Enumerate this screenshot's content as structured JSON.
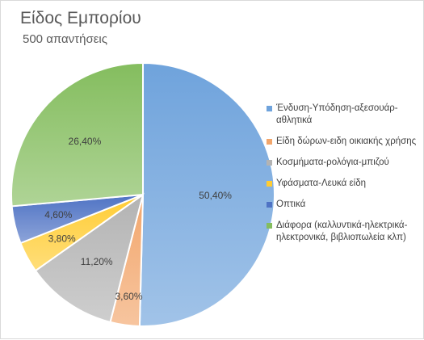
{
  "chart_data": {
    "type": "pie",
    "title": "Είδος Εμπορίου",
    "subtitle": "500 απαντήσεις",
    "legend_position": "right",
    "slices": [
      {
        "name": "Ένδυση-Υπόδηση-αξεσουάρ-αθλητικά",
        "value": 50.4,
        "label": "50,40%",
        "color": "#6fa3dc"
      },
      {
        "name": "Είδη δώρων-ειδη οικιακής χρήσης",
        "value": 3.6,
        "label": "3,60%",
        "color": "#f2a66c"
      },
      {
        "name": "Κοσμήματα-ρολόγια-μπιζού",
        "value": 11.2,
        "label": "11,20%",
        "color": "#b3b3b3"
      },
      {
        "name": "Υφάσματα-Λευκά είδη",
        "value": 3.8,
        "label": "3,80%",
        "color": "#ffcc33"
      },
      {
        "name": "Οπτικά",
        "value": 4.6,
        "label": "4,60%",
        "color": "#4f73c4"
      },
      {
        "name": "Διάφορα (καλλυντικά-ηλεκτρικά-ηλεκτρονικά, βιβλιοπωλεία κλπ)",
        "value": 26.4,
        "label": "26,40%",
        "color": "#84bd5e"
      }
    ]
  }
}
